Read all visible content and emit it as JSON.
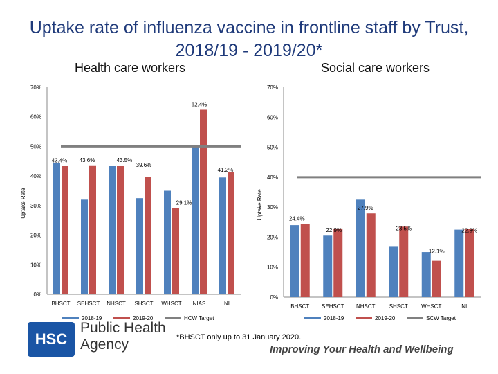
{
  "title": "Uptake rate of influenza vaccine in frontline staff by Trust, 2018/19 - 2019/20*",
  "colors": {
    "series1": "#4f81bd",
    "series2": "#c0504d",
    "target": "#808080",
    "title": "#1f3a7a",
    "hsc_blue": "#1a55a5"
  },
  "chart_data": [
    {
      "type": "bar",
      "title": "Health care workers",
      "ylabel": "Uptake Rate",
      "ylim": [
        0,
        70
      ],
      "yticks": [
        "0%",
        "10%",
        "20%",
        "30%",
        "40%",
        "50%",
        "60%",
        "70%"
      ],
      "categories": [
        "BHSCT",
        "SEHSCT",
        "NHSCT",
        "SHSCT",
        "WHSCT",
        "NIAS",
        "NI"
      ],
      "series": [
        {
          "name": "2018-19",
          "values": [
            44.5,
            32.0,
            43.5,
            32.5,
            35.0,
            50.5,
            39.5
          ]
        },
        {
          "name": "2019-20",
          "values": [
            43.4,
            43.6,
            43.5,
            39.6,
            29.1,
            62.4,
            41.2
          ]
        }
      ],
      "data_labels": [
        {
          "category": "BHSCT",
          "series": "2019-20",
          "text": "43.4%"
        },
        {
          "category": "SEHSCT",
          "series": "2019-20",
          "text": "43.6%"
        },
        {
          "category": "NHSCT",
          "series": "2019-20",
          "text": "43.5%"
        },
        {
          "category": "SHSCT",
          "series": "2019-20",
          "text": "39.6%"
        },
        {
          "category": "WHSCT",
          "series": "2019-20",
          "text": "29.1%"
        },
        {
          "category": "NIAS",
          "series": "2019-20",
          "text": "62.4%"
        },
        {
          "category": "NI",
          "series": "2019-20",
          "text": "41.2%"
        }
      ],
      "target": {
        "name": "HCW Target",
        "value": 50
      },
      "legend": "bottom"
    },
    {
      "type": "bar",
      "title": "Social care workers",
      "ylabel": "Uptake Rate",
      "ylim": [
        0,
        70
      ],
      "yticks": [
        "0%",
        "10%",
        "20%",
        "30%",
        "40%",
        "50%",
        "60%",
        "70%"
      ],
      "categories": [
        "BHSCT",
        "SEHSCT",
        "NHSCT",
        "SHSCT",
        "WHSCT",
        "NI"
      ],
      "series": [
        {
          "name": "2018-19",
          "values": [
            24.0,
            20.5,
            32.5,
            17.0,
            15.0,
            22.5
          ]
        },
        {
          "name": "2019-20",
          "values": [
            24.4,
            22.9,
            27.9,
            23.5,
            12.1,
            22.8
          ]
        }
      ],
      "data_labels": [
        {
          "category": "BHSCT",
          "series": "2019-20",
          "text": "24.4%"
        },
        {
          "category": "SEHSCT",
          "series": "2019-20",
          "text": "22.9%"
        },
        {
          "category": "NHSCT",
          "series": "2019-20",
          "text": "27.9%"
        },
        {
          "category": "SHSCT",
          "series": "2019-20",
          "text": "23.5%"
        },
        {
          "category": "WHSCT",
          "series": "2019-20",
          "text": "12.1%"
        },
        {
          "category": "NI",
          "series": "2019-20",
          "text": "22.8%"
        }
      ],
      "target": {
        "name": "SCW Target",
        "value": 40
      },
      "legend": "bottom"
    }
  ],
  "footnote": "*BHSCT only up to 31 January 2020.",
  "logo": {
    "short": "HSC",
    "line1": "Public Health",
    "line2": "Agency"
  },
  "tagline": "Improving Your Health and Wellbeing"
}
